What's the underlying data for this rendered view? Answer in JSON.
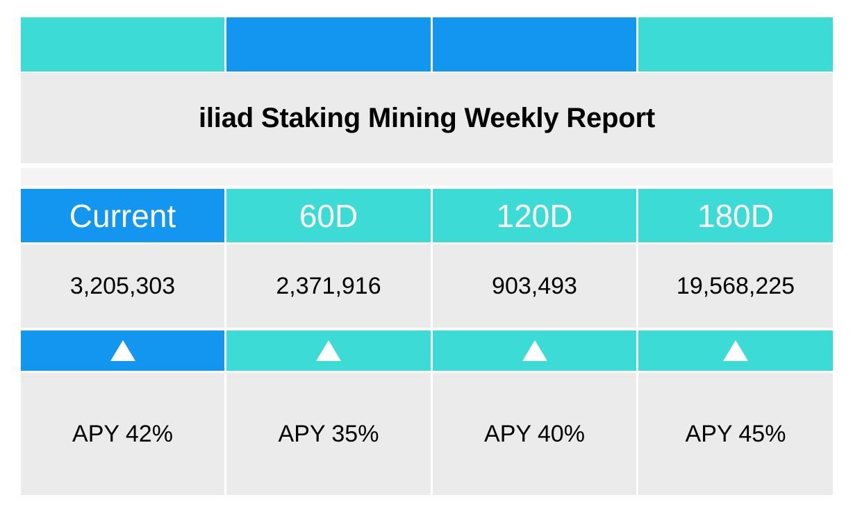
{
  "report": {
    "title": "iliad Staking Mining Weekly Report"
  },
  "colors": {
    "teal": "#3cdbd6",
    "blue": "#1296ef",
    "grey": "#ebebeb"
  },
  "columns": [
    {
      "label": "Current",
      "value": "3,205,303",
      "trend": "up-triangle-icon",
      "apy": "APY 42%",
      "highlight": true
    },
    {
      "label": "60D",
      "value": "2,371,916",
      "trend": "up-triangle-icon",
      "apy": "APY 35%",
      "highlight": false
    },
    {
      "label": "120D",
      "value": "903,493",
      "trend": "up-triangle-icon",
      "apy": "APY 40%",
      "highlight": false
    },
    {
      "label": "180D",
      "value": "19,568,225",
      "trend": "up-triangle-icon",
      "apy": "APY 45%",
      "highlight": false
    }
  ]
}
